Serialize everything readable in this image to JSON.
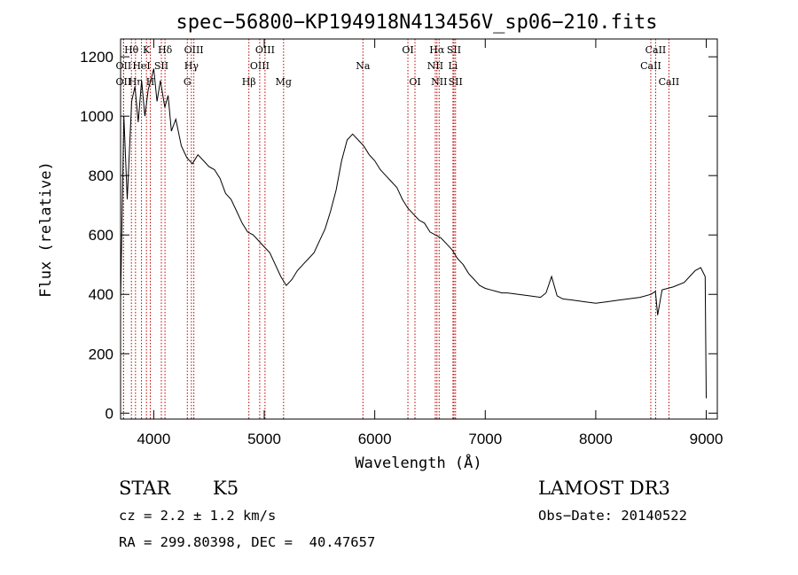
{
  "chart_data": {
    "type": "line",
    "title": "spec−56800−KP194918N413456V_sp06−210.fits",
    "xlabel": "Wavelength (Å)",
    "ylabel": "Flux (relative)",
    "xlim": [
      3700,
      9100
    ],
    "ylim": [
      -20,
      1260
    ],
    "xticks": [
      4000,
      5000,
      6000,
      7000,
      8000,
      9000
    ],
    "yticks": [
      0,
      200,
      400,
      600,
      800,
      1000,
      1200
    ],
    "grid": false,
    "series": [
      {
        "x": [
          3700,
          3730,
          3760,
          3800,
          3830,
          3860,
          3890,
          3920,
          3950,
          3980,
          4000,
          4030,
          4060,
          4100,
          4130,
          4160,
          4200,
          4250,
          4300,
          4350,
          4400,
          4450,
          4500,
          4550,
          4600,
          4650,
          4700,
          4750,
          4800,
          4850,
          4900,
          4950,
          5000,
          5050,
          5100,
          5150,
          5200,
          5250,
          5300,
          5350,
          5400,
          5450,
          5500,
          5550,
          5600,
          5650,
          5700,
          5750,
          5800,
          5850,
          5900,
          5950,
          6000,
          6050,
          6100,
          6150,
          6200,
          6250,
          6300,
          6350,
          6400,
          6450,
          6500,
          6550,
          6600,
          6650,
          6700,
          6750,
          6800,
          6850,
          6900,
          6950,
          7000,
          7050,
          7100,
          7150,
          7200,
          7300,
          7400,
          7500,
          7550,
          7600,
          7650,
          7700,
          7800,
          7900,
          8000,
          8100,
          8200,
          8300,
          8400,
          8500,
          8540,
          8560,
          8600,
          8700,
          8800,
          8850,
          8900,
          8950,
          8990,
          9000
        ],
        "y": [
          380,
          1000,
          720,
          1050,
          1100,
          980,
          1120,
          1000,
          1090,
          1130,
          1160,
          1050,
          1120,
          1030,
          1070,
          950,
          990,
          900,
          860,
          840,
          870,
          850,
          830,
          820,
          790,
          740,
          720,
          680,
          640,
          610,
          600,
          580,
          560,
          540,
          500,
          460,
          430,
          450,
          480,
          500,
          520,
          540,
          580,
          620,
          680,
          750,
          850,
          920,
          940,
          920,
          900,
          870,
          850,
          820,
          800,
          780,
          760,
          720,
          690,
          670,
          650,
          640,
          610,
          600,
          590,
          570,
          550,
          520,
          500,
          470,
          450,
          430,
          420,
          415,
          410,
          405,
          405,
          400,
          395,
          390,
          405,
          460,
          395,
          385,
          380,
          375,
          370,
          375,
          380,
          385,
          390,
          400,
          410,
          330,
          415,
          425,
          440,
          460,
          480,
          490,
          460,
          50
        ]
      }
    ],
    "line_marks": [
      {
        "label": "Hθ",
        "x": 3798,
        "row": 0
      },
      {
        "label": "OII",
        "x": 3727,
        "row": 1
      },
      {
        "label": "OII",
        "x": 3727,
        "row": 2
      },
      {
        "label": "Hη",
        "x": 3835,
        "row": 2
      },
      {
        "label": "K",
        "x": 3934,
        "row": 0
      },
      {
        "label": "HeI",
        "x": 3889,
        "row": 1
      },
      {
        "label": "H",
        "x": 3969,
        "row": 2
      },
      {
        "label": "Hδ",
        "x": 4102,
        "row": 0
      },
      {
        "label": "SII",
        "x": 4069,
        "row": 1
      },
      {
        "label": "OIII",
        "x": 4363,
        "row": 0
      },
      {
        "label": "Hγ",
        "x": 4341,
        "row": 1
      },
      {
        "label": "G",
        "x": 4304,
        "row": 2
      },
      {
        "label": "OIII",
        "x": 5007,
        "row": 0
      },
      {
        "label": "OIII",
        "x": 4959,
        "row": 1
      },
      {
        "label": "Hβ",
        "x": 4861,
        "row": 2
      },
      {
        "label": "Mg",
        "x": 5175,
        "row": 2
      },
      {
        "label": "Na",
        "x": 5893,
        "row": 1
      },
      {
        "label": "OI",
        "x": 6300,
        "row": 0
      },
      {
        "label": "OI",
        "x": 6364,
        "row": 2
      },
      {
        "label": "Hα",
        "x": 6563,
        "row": 0
      },
      {
        "label": "NII",
        "x": 6548,
        "row": 1
      },
      {
        "label": "NII",
        "x": 6583,
        "row": 2
      },
      {
        "label": "SII",
        "x": 6717,
        "row": 0
      },
      {
        "label": "Li",
        "x": 6708,
        "row": 1
      },
      {
        "label": "SII",
        "x": 6731,
        "row": 2
      },
      {
        "label": "CaII",
        "x": 8542,
        "row": 0
      },
      {
        "label": "CaII",
        "x": 8498,
        "row": 1
      },
      {
        "label": "CaII",
        "x": 8662,
        "row": 2
      }
    ]
  },
  "info": {
    "class_label": "STAR",
    "subclass_label": "K5",
    "survey": "LAMOST DR3",
    "cz": "cz = 2.2 ± 1.2 km/s",
    "obs_date": "Obs−Date: 20140522",
    "coords": "RA = 299.80398, DEC =  40.47657"
  }
}
